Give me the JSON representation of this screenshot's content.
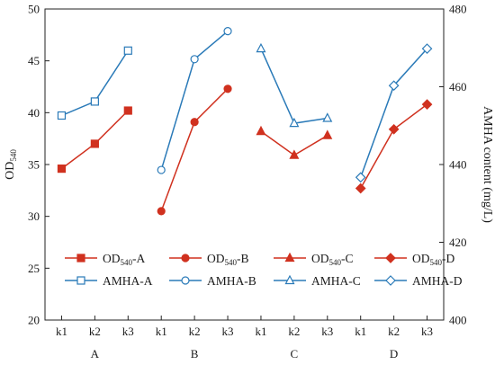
{
  "chart_data": {
    "type": "line",
    "y_left": {
      "label": "OD",
      "label_sub": "540",
      "min": 20,
      "max": 50,
      "ticks": [
        20,
        25,
        30,
        35,
        40,
        45,
        50
      ]
    },
    "y_right": {
      "label": "AMHA content (mg/L)",
      "min": 400,
      "max": 480,
      "ticks": [
        400,
        420,
        440,
        460,
        480
      ]
    },
    "groups": [
      {
        "name": "A",
        "levels": [
          "k1",
          "k2",
          "k3"
        ]
      },
      {
        "name": "B",
        "levels": [
          "k1",
          "k2",
          "k3"
        ]
      },
      {
        "name": "C",
        "levels": [
          "k1",
          "k2",
          "k3"
        ]
      },
      {
        "name": "D",
        "levels": [
          "k1",
          "k2",
          "k3"
        ]
      }
    ],
    "series": [
      {
        "name": "OD540-A",
        "name_main": "OD",
        "name_sub": "540",
        "name_tail": "-A",
        "axis": "left",
        "group": 0,
        "marker": "square-filled",
        "color": "#d0311f",
        "values": [
          34.6,
          37.0,
          40.2
        ]
      },
      {
        "name": "OD540-B",
        "name_main": "OD",
        "name_sub": "540",
        "name_tail": "-B",
        "axis": "left",
        "group": 1,
        "marker": "circle-filled",
        "color": "#d0311f",
        "values": [
          30.5,
          39.1,
          42.3
        ]
      },
      {
        "name": "OD540-C",
        "name_main": "OD",
        "name_sub": "540",
        "name_tail": "-C",
        "axis": "left",
        "group": 2,
        "marker": "triangle-filled",
        "color": "#d0311f",
        "values": [
          38.2,
          35.9,
          37.8
        ]
      },
      {
        "name": "OD540-D",
        "name_main": "OD",
        "name_sub": "540",
        "name_tail": "-D",
        "axis": "left",
        "group": 3,
        "marker": "diamond-filled",
        "color": "#d0311f",
        "values": [
          32.7,
          38.4,
          40.8
        ]
      },
      {
        "name": "AMHA-A",
        "name_main": "AMHA-A",
        "axis": "right",
        "group": 0,
        "marker": "square-open",
        "color": "#2a7ab8",
        "values": [
          452.6,
          456.2,
          469.3
        ]
      },
      {
        "name": "AMHA-B",
        "name_main": "AMHA-B",
        "axis": "right",
        "group": 1,
        "marker": "circle-open",
        "color": "#2a7ab8",
        "values": [
          438.6,
          467.1,
          474.3
        ]
      },
      {
        "name": "AMHA-C",
        "name_main": "AMHA-C",
        "axis": "right",
        "group": 2,
        "marker": "triangle-open",
        "color": "#2a7ab8",
        "values": [
          469.8,
          450.6,
          451.9
        ]
      },
      {
        "name": "AMHA-D",
        "name_main": "AMHA-D",
        "axis": "right",
        "group": 3,
        "marker": "diamond-open",
        "color": "#2a7ab8",
        "values": [
          436.7,
          460.3,
          469.8
        ]
      }
    ],
    "legend_position": "bottom-center, two rows of four"
  }
}
